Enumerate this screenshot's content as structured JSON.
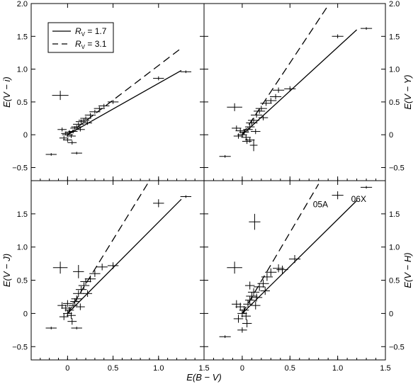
{
  "figure": {
    "xlabel": "E(B − V)",
    "legend": {
      "location": "top-left of top-left panel",
      "entries": [
        {
          "symbol": "R",
          "subscript": "V",
          "text": " = 1.7",
          "style": "solid"
        },
        {
          "symbol": "R",
          "subscript": "V",
          "text": " = 3.1",
          "style": "dashed"
        }
      ]
    }
  },
  "chart_data": [
    {
      "type": "scatter",
      "panel": "top-left",
      "ylabel": "E(V − i)",
      "xlim": [
        -0.4,
        1.5
      ],
      "ylim": [
        -0.7,
        2.0
      ],
      "xticks": [
        0,
        0.5,
        1.0,
        1.5
      ],
      "yticks": [
        -0.5,
        0,
        0.5,
        1.0,
        1.5,
        2.0
      ],
      "ytick_labels": [
        "−0.5",
        "0",
        "0.5",
        "1.0",
        "1.5",
        "2.0"
      ],
      "lines": [
        {
          "name": "R_V = 1.7",
          "style": "solid",
          "x": [
            0.0,
            1.25
          ],
          "y": [
            0.0,
            0.98
          ]
        },
        {
          "name": "R_V = 3.1",
          "style": "dashed",
          "x": [
            0.0,
            1.25
          ],
          "y": [
            0.0,
            1.32
          ]
        }
      ],
      "points": [
        {
          "x": -0.08,
          "y": 0.6,
          "xerr": 0.09,
          "yerr": 0.07
        },
        {
          "x": 1.0,
          "y": 0.86,
          "xerr": 0.06,
          "yerr": 0.03
        },
        {
          "x": 1.3,
          "y": 0.96,
          "xerr": 0.06,
          "yerr": 0.02
        },
        {
          "x": -0.18,
          "y": -0.3,
          "xerr": 0.06,
          "yerr": 0.02
        },
        {
          "x": 0.1,
          "y": -0.28,
          "xerr": 0.06,
          "yerr": 0.02
        },
        {
          "x": 0.0,
          "y": 0.0,
          "xerr": 0.06,
          "yerr": 0.03
        },
        {
          "x": 0.02,
          "y": 0.04,
          "xerr": 0.05,
          "yerr": 0.03
        },
        {
          "x": 0.04,
          "y": -0.02,
          "xerr": 0.05,
          "yerr": 0.03
        },
        {
          "x": -0.02,
          "y": 0.02,
          "xerr": 0.05,
          "yerr": 0.03
        },
        {
          "x": -0.04,
          "y": -0.05,
          "xerr": 0.05,
          "yerr": 0.03
        },
        {
          "x": 0.06,
          "y": 0.05,
          "xerr": 0.05,
          "yerr": 0.03
        },
        {
          "x": 0.08,
          "y": 0.1,
          "xerr": 0.05,
          "yerr": 0.03
        },
        {
          "x": 0.1,
          "y": 0.12,
          "xerr": 0.06,
          "yerr": 0.03
        },
        {
          "x": 0.12,
          "y": 0.16,
          "xerr": 0.06,
          "yerr": 0.03
        },
        {
          "x": 0.15,
          "y": 0.2,
          "xerr": 0.06,
          "yerr": 0.03
        },
        {
          "x": 0.18,
          "y": 0.22,
          "xerr": 0.06,
          "yerr": 0.03
        },
        {
          "x": 0.2,
          "y": 0.25,
          "xerr": 0.06,
          "yerr": 0.03
        },
        {
          "x": 0.25,
          "y": 0.3,
          "xerr": 0.06,
          "yerr": 0.03
        },
        {
          "x": 0.3,
          "y": 0.35,
          "xerr": 0.06,
          "yerr": 0.03
        },
        {
          "x": 0.35,
          "y": 0.4,
          "xerr": 0.06,
          "yerr": 0.03
        },
        {
          "x": 0.4,
          "y": 0.44,
          "xerr": 0.06,
          "yerr": 0.03
        },
        {
          "x": 0.5,
          "y": 0.5,
          "xerr": 0.06,
          "yerr": 0.03
        },
        {
          "x": 0.05,
          "y": -0.12,
          "xerr": 0.05,
          "yerr": 0.03
        },
        {
          "x": -0.06,
          "y": 0.08,
          "xerr": 0.05,
          "yerr": 0.03
        },
        {
          "x": 0.0,
          "y": -0.08,
          "xerr": 0.05,
          "yerr": 0.03
        },
        {
          "x": 0.14,
          "y": 0.08,
          "xerr": 0.05,
          "yerr": 0.03
        },
        {
          "x": 0.22,
          "y": 0.18,
          "xerr": 0.05,
          "yerr": 0.03
        }
      ]
    },
    {
      "type": "scatter",
      "panel": "top-right",
      "ylabel": "E(V − Y)",
      "xlim": [
        -0.4,
        1.5
      ],
      "ylim": [
        -0.7,
        2.0
      ],
      "xticks": [
        0,
        0.5,
        1.0,
        1.5
      ],
      "yticks": [
        -0.5,
        0,
        0.5,
        1.0,
        1.5,
        2.0
      ],
      "ytick_labels": [
        "−0.5",
        "0",
        "0.5",
        "1.0",
        "1.5",
        "2.0"
      ],
      "lines": [
        {
          "name": "R_V = 1.7",
          "style": "solid",
          "x": [
            0.0,
            1.2
          ],
          "y": [
            0.0,
            1.6
          ]
        },
        {
          "name": "R_V = 3.1",
          "style": "dashed",
          "x": [
            0.0,
            0.9
          ],
          "y": [
            0.0,
            1.97
          ]
        }
      ],
      "points": [
        {
          "x": -0.08,
          "y": 0.42,
          "xerr": 0.08,
          "yerr": 0.06
        },
        {
          "x": 1.0,
          "y": 1.5,
          "xerr": 0.06,
          "yerr": 0.03
        },
        {
          "x": 1.3,
          "y": 1.62,
          "xerr": 0.06,
          "yerr": 0.02
        },
        {
          "x": -0.18,
          "y": -0.33,
          "xerr": 0.06,
          "yerr": 0.02
        },
        {
          "x": 0.12,
          "y": -0.16,
          "xerr": 0.04,
          "yerr": 0.09
        },
        {
          "x": 0.0,
          "y": 0.0,
          "xerr": 0.05,
          "yerr": 0.04
        },
        {
          "x": 0.02,
          "y": 0.04,
          "xerr": 0.05,
          "yerr": 0.04
        },
        {
          "x": 0.04,
          "y": -0.04,
          "xerr": 0.05,
          "yerr": 0.04
        },
        {
          "x": -0.02,
          "y": 0.06,
          "xerr": 0.05,
          "yerr": 0.04
        },
        {
          "x": -0.04,
          "y": -0.02,
          "xerr": 0.05,
          "yerr": 0.04
        },
        {
          "x": 0.06,
          "y": 0.08,
          "xerr": 0.05,
          "yerr": 0.04
        },
        {
          "x": 0.08,
          "y": 0.12,
          "xerr": 0.05,
          "yerr": 0.04
        },
        {
          "x": 0.1,
          "y": 0.18,
          "xerr": 0.06,
          "yerr": 0.04
        },
        {
          "x": 0.12,
          "y": 0.22,
          "xerr": 0.06,
          "yerr": 0.04
        },
        {
          "x": 0.15,
          "y": 0.3,
          "xerr": 0.06,
          "yerr": 0.04
        },
        {
          "x": 0.18,
          "y": 0.36,
          "xerr": 0.06,
          "yerr": 0.04
        },
        {
          "x": 0.2,
          "y": 0.4,
          "xerr": 0.06,
          "yerr": 0.04
        },
        {
          "x": 0.25,
          "y": 0.48,
          "xerr": 0.06,
          "yerr": 0.04
        },
        {
          "x": 0.3,
          "y": 0.52,
          "xerr": 0.06,
          "yerr": 0.04
        },
        {
          "x": 0.35,
          "y": 0.58,
          "xerr": 0.06,
          "yerr": 0.04
        },
        {
          "x": 0.38,
          "y": 0.68,
          "xerr": 0.06,
          "yerr": 0.04
        },
        {
          "x": 0.5,
          "y": 0.7,
          "xerr": 0.06,
          "yerr": 0.04
        },
        {
          "x": 0.05,
          "y": -0.1,
          "xerr": 0.05,
          "yerr": 0.04
        },
        {
          "x": -0.06,
          "y": 0.1,
          "xerr": 0.05,
          "yerr": 0.04
        },
        {
          "x": 0.14,
          "y": 0.05,
          "xerr": 0.05,
          "yerr": 0.04
        },
        {
          "x": 0.22,
          "y": 0.26,
          "xerr": 0.05,
          "yerr": 0.04
        },
        {
          "x": 0.08,
          "y": -0.08,
          "xerr": 0.05,
          "yerr": 0.04
        }
      ]
    },
    {
      "type": "scatter",
      "panel": "bottom-left",
      "ylabel": "E(V − J)",
      "xlim": [
        -0.4,
        1.5
      ],
      "ylim": [
        -0.7,
        2.0
      ],
      "xticks": [
        0,
        0.5,
        1.0,
        1.5
      ],
      "xtick_labels": [
        "0",
        "0.5",
        "1.0",
        "1.5"
      ],
      "yticks": [
        -0.5,
        0,
        0.5,
        1.0,
        1.5
      ],
      "ytick_labels": [
        "−0.5",
        "0",
        "0.5",
        "1.0",
        "1.5"
      ],
      "lines": [
        {
          "name": "R_V = 1.7",
          "style": "solid",
          "x": [
            0.0,
            1.25
          ],
          "y": [
            0.0,
            1.72
          ]
        },
        {
          "name": "R_V = 3.1",
          "style": "dashed",
          "x": [
            0.0,
            0.9
          ],
          "y": [
            0.0,
            2.0
          ]
        }
      ],
      "points": [
        {
          "x": -0.08,
          "y": 0.69,
          "xerr": 0.08,
          "yerr": 0.09
        },
        {
          "x": 1.0,
          "y": 1.66,
          "xerr": 0.06,
          "yerr": 0.06
        },
        {
          "x": 1.3,
          "y": 1.76,
          "xerr": 0.06,
          "yerr": 0.02
        },
        {
          "x": -0.18,
          "y": -0.22,
          "xerr": 0.06,
          "yerr": 0.02
        },
        {
          "x": 0.12,
          "y": 0.63,
          "xerr": 0.06,
          "yerr": 0.1
        },
        {
          "x": 0.1,
          "y": -0.22,
          "xerr": 0.06,
          "yerr": 0.02
        },
        {
          "x": 0.0,
          "y": 0.0,
          "xerr": 0.05,
          "yerr": 0.05
        },
        {
          "x": 0.02,
          "y": 0.05,
          "xerr": 0.05,
          "yerr": 0.05
        },
        {
          "x": 0.04,
          "y": -0.03,
          "xerr": 0.05,
          "yerr": 0.05
        },
        {
          "x": -0.02,
          "y": 0.08,
          "xerr": 0.05,
          "yerr": 0.05
        },
        {
          "x": -0.04,
          "y": -0.05,
          "xerr": 0.05,
          "yerr": 0.05
        },
        {
          "x": 0.06,
          "y": 0.12,
          "xerr": 0.05,
          "yerr": 0.05
        },
        {
          "x": 0.08,
          "y": 0.18,
          "xerr": 0.05,
          "yerr": 0.05
        },
        {
          "x": 0.1,
          "y": 0.22,
          "xerr": 0.06,
          "yerr": 0.05
        },
        {
          "x": 0.12,
          "y": 0.3,
          "xerr": 0.06,
          "yerr": 0.05
        },
        {
          "x": 0.15,
          "y": 0.36,
          "xerr": 0.06,
          "yerr": 0.05
        },
        {
          "x": 0.18,
          "y": 0.42,
          "xerr": 0.06,
          "yerr": 0.05
        },
        {
          "x": 0.2,
          "y": 0.48,
          "xerr": 0.06,
          "yerr": 0.05
        },
        {
          "x": 0.25,
          "y": 0.52,
          "xerr": 0.06,
          "yerr": 0.05
        },
        {
          "x": 0.3,
          "y": 0.6,
          "xerr": 0.06,
          "yerr": 0.05
        },
        {
          "x": 0.38,
          "y": 0.7,
          "xerr": 0.06,
          "yerr": 0.05
        },
        {
          "x": 0.5,
          "y": 0.72,
          "xerr": 0.06,
          "yerr": 0.05
        },
        {
          "x": 0.05,
          "y": -0.12,
          "xerr": 0.05,
          "yerr": 0.05
        },
        {
          "x": -0.06,
          "y": 0.12,
          "xerr": 0.05,
          "yerr": 0.05
        },
        {
          "x": 0.14,
          "y": 0.1,
          "xerr": 0.05,
          "yerr": 0.05
        },
        {
          "x": 0.22,
          "y": 0.3,
          "xerr": 0.05,
          "yerr": 0.05
        },
        {
          "x": 0.0,
          "y": 0.15,
          "xerr": 0.05,
          "yerr": 0.05
        }
      ]
    },
    {
      "type": "scatter",
      "panel": "bottom-right",
      "ylabel": "E(V − H)",
      "xlim": [
        -0.4,
        1.5
      ],
      "ylim": [
        -0.7,
        2.0
      ],
      "xticks": [
        0,
        0.5,
        1.0,
        1.5
      ],
      "xtick_labels": [
        "0",
        "0.5",
        "1.0",
        "1.5"
      ],
      "yticks": [
        -0.5,
        0,
        0.5,
        1.0,
        1.5
      ],
      "ytick_labels": [
        "−0.5",
        "0",
        "0.5",
        "1.0",
        "1.5"
      ],
      "lines": [
        {
          "name": "R_V = 1.7",
          "style": "solid",
          "x": [
            0.0,
            1.2
          ],
          "y": [
            0.0,
            1.7
          ]
        },
        {
          "name": "R_V = 3.1",
          "style": "dashed",
          "x": [
            0.0,
            0.8
          ],
          "y": [
            0.0,
            1.95
          ]
        }
      ],
      "annotations": [
        {
          "text": "05A",
          "x": 0.82,
          "y": 1.6
        },
        {
          "text": "06X",
          "x": 1.22,
          "y": 1.68
        }
      ],
      "points": [
        {
          "x": -0.08,
          "y": 0.69,
          "xerr": 0.08,
          "yerr": 0.09
        },
        {
          "x": 0.13,
          "y": 1.38,
          "xerr": 0.06,
          "yerr": 0.12
        },
        {
          "x": 1.0,
          "y": 1.78,
          "xerr": 0.06,
          "yerr": 0.06
        },
        {
          "x": 1.3,
          "y": 1.9,
          "xerr": 0.06,
          "yerr": 0.02
        },
        {
          "x": -0.18,
          "y": -0.35,
          "xerr": 0.06,
          "yerr": 0.02
        },
        {
          "x": 0.0,
          "y": 0.0,
          "xerr": 0.05,
          "yerr": 0.06
        },
        {
          "x": 0.02,
          "y": 0.05,
          "xerr": 0.05,
          "yerr": 0.06
        },
        {
          "x": 0.04,
          "y": -0.04,
          "xerr": 0.05,
          "yerr": 0.06
        },
        {
          "x": -0.02,
          "y": 0.1,
          "xerr": 0.05,
          "yerr": 0.06
        },
        {
          "x": -0.04,
          "y": -0.08,
          "xerr": 0.05,
          "yerr": 0.06
        },
        {
          "x": 0.06,
          "y": 0.14,
          "xerr": 0.05,
          "yerr": 0.06
        },
        {
          "x": 0.08,
          "y": 0.2,
          "xerr": 0.05,
          "yerr": 0.06
        },
        {
          "x": 0.1,
          "y": 0.26,
          "xerr": 0.06,
          "yerr": 0.06
        },
        {
          "x": 0.12,
          "y": 0.32,
          "xerr": 0.06,
          "yerr": 0.06
        },
        {
          "x": 0.15,
          "y": 0.24,
          "xerr": 0.06,
          "yerr": 0.06
        },
        {
          "x": 0.18,
          "y": 0.4,
          "xerr": 0.06,
          "yerr": 0.06
        },
        {
          "x": 0.22,
          "y": 0.45,
          "xerr": 0.06,
          "yerr": 0.06
        },
        {
          "x": 0.26,
          "y": 0.55,
          "xerr": 0.06,
          "yerr": 0.06
        },
        {
          "x": 0.3,
          "y": 0.62,
          "xerr": 0.06,
          "yerr": 0.06
        },
        {
          "x": 0.38,
          "y": 0.68,
          "xerr": 0.06,
          "yerr": 0.06
        },
        {
          "x": 0.42,
          "y": 0.66,
          "xerr": 0.06,
          "yerr": 0.06
        },
        {
          "x": 0.55,
          "y": 0.82,
          "xerr": 0.06,
          "yerr": 0.06
        },
        {
          "x": 0.05,
          "y": -0.15,
          "xerr": 0.05,
          "yerr": 0.06
        },
        {
          "x": -0.06,
          "y": 0.14,
          "xerr": 0.05,
          "yerr": 0.06
        },
        {
          "x": 0.0,
          "y": -0.25,
          "xerr": 0.05,
          "yerr": 0.04
        },
        {
          "x": 0.14,
          "y": 0.12,
          "xerr": 0.05,
          "yerr": 0.06
        },
        {
          "x": 0.24,
          "y": 0.34,
          "xerr": 0.05,
          "yerr": 0.06
        },
        {
          "x": 0.08,
          "y": 0.42,
          "xerr": 0.05,
          "yerr": 0.06
        }
      ]
    }
  ]
}
